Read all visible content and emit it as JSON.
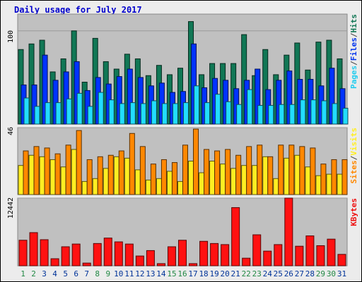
{
  "title": "Daily usage for July 2017",
  "chart_data": [
    {
      "type": "bar",
      "name": "top-panel",
      "categories": [
        "1",
        "2",
        "3",
        "4",
        "5",
        "6",
        "7",
        "8",
        "9",
        "10",
        "11",
        "12",
        "13",
        "14",
        "15",
        "16",
        "17",
        "18",
        "19",
        "20",
        "21",
        "22",
        "23",
        "24",
        "25",
        "26",
        "27",
        "28",
        "29",
        "30",
        "31"
      ],
      "weekend_days": [
        1,
        2,
        8,
        9,
        15,
        16,
        22,
        23,
        29,
        30
      ],
      "ymax": 100,
      "ytick_label": "100",
      "ylim": [
        0,
        118
      ],
      "series": [
        {
          "name": "Hits",
          "color": "#117755",
          "values": [
            80,
            86,
            90,
            56,
            70,
            100,
            45,
            92,
            67,
            59,
            75,
            70,
            52,
            63,
            53,
            60,
            110,
            53,
            65,
            65,
            65,
            96,
            52,
            80,
            53,
            74,
            87,
            58,
            88,
            90,
            70
          ]
        },
        {
          "name": "Files",
          "color": "#0033ff",
          "values": [
            42,
            42,
            74,
            47,
            56,
            67,
            36,
            50,
            43,
            51,
            59,
            50,
            41,
            44,
            34,
            35,
            86,
            39,
            49,
            47,
            38,
            47,
            59,
            37,
            47,
            57,
            48,
            48,
            41,
            60,
            38
          ]
        },
        {
          "name": "Pages",
          "color": "#22ddff",
          "values": [
            28,
            19,
            23,
            23,
            27,
            33,
            19,
            34,
            26,
            22,
            23,
            22,
            25,
            22,
            22,
            23,
            41,
            23,
            32,
            24,
            21,
            37,
            20,
            20,
            21,
            21,
            26,
            26,
            25,
            22,
            17
          ]
        }
      ],
      "legend": [
        {
          "text": "Pages",
          "color": "#22ccee"
        },
        {
          "text": "/",
          "color": "#444444"
        },
        {
          "text": "Files",
          "color": "#0033ee"
        },
        {
          "text": "/",
          "color": "#444444"
        },
        {
          "text": "Hits",
          "color": "#117755"
        }
      ]
    },
    {
      "type": "bar",
      "name": "middle-panel",
      "ymax": 46,
      "ytick_label": "46",
      "ylim": [
        0,
        46
      ],
      "series": [
        {
          "name": "Visits",
          "color": "#ffee22",
          "values": [
            20,
            27,
            26,
            24,
            19,
            31,
            9,
            11,
            18,
            26,
            25,
            17,
            10,
            11,
            16,
            9,
            23,
            15,
            23,
            21,
            18,
            20,
            20,
            26,
            11,
            25,
            27,
            19,
            13,
            14,
            14
          ]
        },
        {
          "name": "Sites",
          "color": "#ff8800",
          "values": [
            30,
            33,
            32,
            28,
            34,
            44,
            24,
            26,
            27,
            30,
            42,
            33,
            21,
            24,
            22,
            34,
            45,
            31,
            30,
            31,
            27,
            33,
            34,
            26,
            34,
            34,
            33,
            32,
            21,
            24,
            24
          ]
        }
      ],
      "legend": [
        {
          "text": "Sites",
          "color": "#ff8800"
        },
        {
          "text": "/",
          "color": "#444444"
        },
        {
          "text": "Visits",
          "color": "#ffee22"
        }
      ]
    },
    {
      "type": "bar",
      "name": "bottom-panel",
      "ymax": 12442,
      "ytick_label": "12442",
      "ylim": [
        0,
        12442
      ],
      "series": [
        {
          "name": "KBytes",
          "color": "#ff1111",
          "values": [
            4700,
            6100,
            4800,
            1300,
            3500,
            4000,
            500,
            4100,
            5100,
            4400,
            4000,
            1800,
            2800,
            400,
            3500,
            4700,
            400,
            4500,
            4100,
            3900,
            10700,
            1400,
            5700,
            2700,
            3900,
            12442,
            3600,
            5500,
            3700,
            4900,
            2100
          ]
        }
      ],
      "legend": [
        {
          "text": "KBytes",
          "color": "#ee1111"
        }
      ]
    }
  ],
  "day_colors": {
    "weekday": "#003399",
    "weekend": "#228844"
  }
}
